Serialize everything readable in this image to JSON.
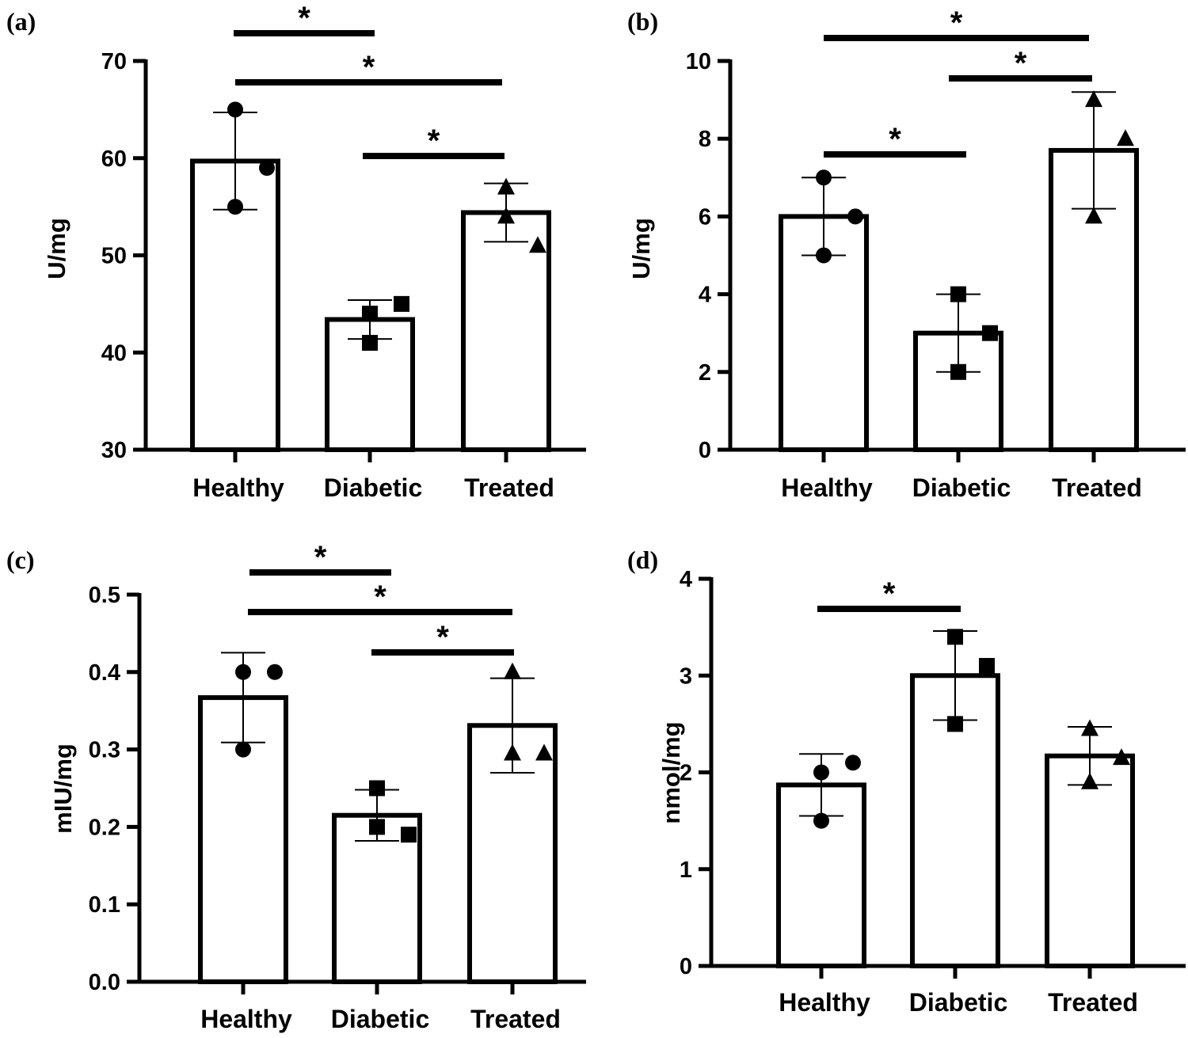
{
  "figure": {
    "background": "#ffffff",
    "ink": "#000000"
  },
  "chart_data": [
    {
      "panel": "(a)",
      "type": "bar",
      "ylabel": "U/mg",
      "ylim": [
        30,
        70
      ],
      "yticks": [
        30,
        40,
        50,
        60,
        70
      ],
      "categories": [
        "Healthy",
        "Diabetic",
        "Treated"
      ],
      "values": [
        59.7,
        43.4,
        54.4
      ],
      "error": [
        5.0,
        2.0,
        3.0
      ],
      "markers": [
        "circle",
        "square",
        "triangle"
      ],
      "points": [
        [
          65,
          59,
          55
        ],
        [
          44,
          45,
          41
        ],
        [
          54,
          51,
          57
        ]
      ],
      "significance": [
        {
          "from": 0,
          "to": 1,
          "label": "*"
        },
        {
          "from": 0,
          "to": 2,
          "label": "*"
        },
        {
          "from": 1,
          "to": 2,
          "label": "*"
        }
      ]
    },
    {
      "panel": "(b)",
      "type": "bar",
      "ylabel": "U/mg",
      "ylim": [
        0,
        10
      ],
      "yticks": [
        0,
        2,
        4,
        6,
        8,
        10
      ],
      "categories": [
        "Healthy",
        "Diabetic",
        "Treated"
      ],
      "values": [
        6.0,
        3.0,
        7.7
      ],
      "error": [
        1.0,
        1.0,
        1.5
      ],
      "markers": [
        "circle",
        "square",
        "triangle"
      ],
      "points": [
        [
          7,
          6,
          5
        ],
        [
          4,
          3,
          2
        ],
        [
          9,
          8,
          6
        ]
      ],
      "significance": [
        {
          "from": 0,
          "to": 2,
          "label": "*"
        },
        {
          "from": 1,
          "to": 2,
          "label": "*"
        },
        {
          "from": 0,
          "to": 1,
          "label": "*"
        }
      ]
    },
    {
      "panel": "(c)",
      "type": "bar",
      "ylabel": "mIU/mg",
      "ylim": [
        0.0,
        0.5
      ],
      "yticks": [
        0.0,
        0.1,
        0.2,
        0.3,
        0.4,
        0.5
      ],
      "categories": [
        "Healthy",
        "Diabetic",
        "Treated"
      ],
      "values": [
        0.367,
        0.215,
        0.331
      ],
      "error": [
        0.058,
        0.033,
        0.061
      ],
      "markers": [
        "circle",
        "square",
        "triangle"
      ],
      "points": [
        [
          0.4,
          0.4,
          0.3
        ],
        [
          0.25,
          0.19,
          0.2
        ],
        [
          0.4,
          0.295,
          0.295
        ]
      ],
      "significance": [
        {
          "from": 0,
          "to": 1,
          "label": "*"
        },
        {
          "from": 0,
          "to": 2,
          "label": "*"
        },
        {
          "from": 1,
          "to": 2,
          "label": "*"
        }
      ]
    },
    {
      "panel": "(d)",
      "type": "bar",
      "ylabel": "nmol/mg",
      "ylim": [
        0,
        4
      ],
      "yticks": [
        0,
        1,
        2,
        3,
        4
      ],
      "categories": [
        "Healthy",
        "Diabetic",
        "Treated"
      ],
      "values": [
        1.87,
        3.0,
        2.17
      ],
      "error": [
        0.32,
        0.46,
        0.3
      ],
      "markers": [
        "circle",
        "square",
        "triangle"
      ],
      "points": [
        [
          2.0,
          2.1,
          1.5
        ],
        [
          3.4,
          3.1,
          2.5
        ],
        [
          2.45,
          2.15,
          1.9
        ]
      ],
      "significance": [
        {
          "from": 0,
          "to": 1,
          "label": "*"
        }
      ]
    }
  ]
}
